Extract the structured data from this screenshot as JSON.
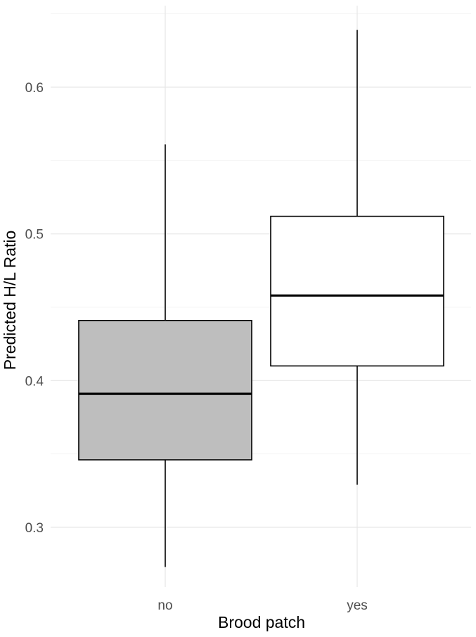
{
  "chart_data": {
    "type": "box",
    "xlabel": "Brood patch",
    "ylabel": "Predicted H/L Ratio",
    "categories": [
      "no",
      "yes"
    ],
    "boxes": [
      {
        "category": "no",
        "whisker_low": 0.273,
        "q1": 0.346,
        "median": 0.391,
        "q3": 0.441,
        "whisker_high": 0.561,
        "fill": "#bebebe"
      },
      {
        "category": "yes",
        "whisker_low": 0.329,
        "q1": 0.41,
        "median": 0.458,
        "q3": 0.512,
        "whisker_high": 0.639,
        "fill": "#ffffff"
      }
    ],
    "yticks": [
      0.3,
      0.4,
      0.5,
      0.6
    ],
    "yticks_labels": [
      "0.3",
      "0.4",
      "0.5",
      "0.6"
    ],
    "ylim": [
      0.26,
      0.65
    ],
    "grid": true
  }
}
